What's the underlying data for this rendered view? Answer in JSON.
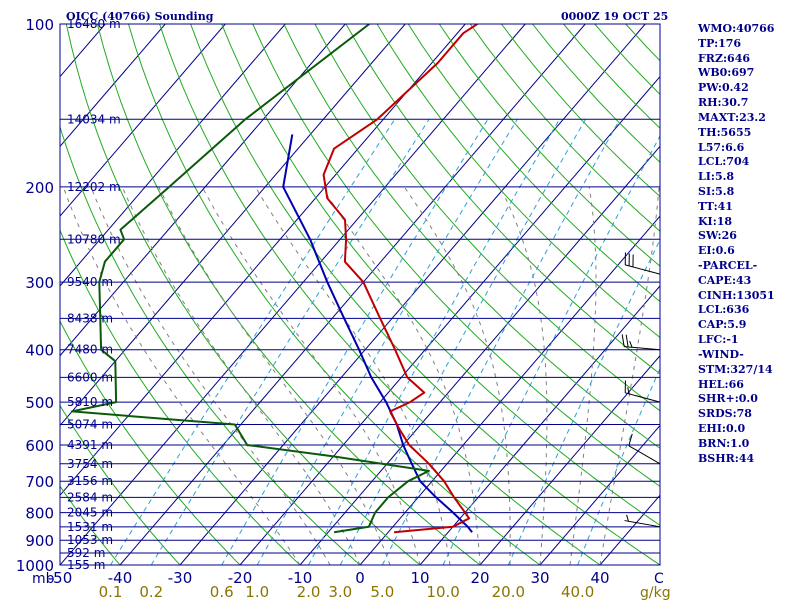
{
  "header": {
    "station": "OICC (40766) Sounding",
    "time": "0000Z 19 OCT 25"
  },
  "indices": [
    "WMO:40766",
    "TP:176",
    "FRZ:646",
    "WB0:697",
    "PW:0.42",
    "RH:30.7",
    "MAXT:23.2",
    "TH:5655",
    "L57:6.6",
    "LCL:704",
    "LI:5.8",
    "SI:5.8",
    "TT:41",
    "KI:18",
    "SW:26",
    "EI:0.6",
    "-PARCEL-",
    "CAPE:43",
    "CINH:13051",
    "LCL:636",
    "CAP:5.9",
    "LFC:-1",
    "-WIND-",
    "STM:327/14",
    "HEL:66",
    "SHR+:0.0",
    "SRDS:78",
    "EHI:0.0",
    "BRN:1.0",
    "BSHR:44"
  ],
  "colors": {
    "background": "#ffffff",
    "border": "#00008b",
    "isobar": "#00008b",
    "isotherm": "#00008b",
    "dry_adiabat": "#22aa22",
    "moist_adiabat": "#808080",
    "mixing_ratio": "#2aa0d8",
    "temperature": "#c00000",
    "dewpoint": "#0a5a0a",
    "parcel": "#0000b0",
    "wind_barb": "#000000",
    "text": "#00008b",
    "mixing_label": "#8b7500"
  },
  "chart_data": {
    "type": "skew-t",
    "x_unit": "C",
    "y_unit": "mb",
    "temp_axis_at_1000mb": [
      -50,
      50
    ],
    "pressure_range_mb": [
      1000,
      100
    ],
    "y_scale": "log",
    "pressure_ticks": [
      100,
      200,
      300,
      400,
      500,
      600,
      700,
      800,
      900,
      1000
    ],
    "pressure_tick_labels": [
      "100",
      "200",
      "300",
      "400",
      "500",
      "600",
      "700",
      "800",
      "900",
      "1000"
    ],
    "temperature_ticks": [
      -50,
      -40,
      -30,
      -20,
      -10,
      0,
      10,
      20,
      30,
      40
    ],
    "temperature_tick_labels": [
      "-50",
      "-40",
      "-30",
      "-20",
      "-10",
      "0",
      "10",
      "20",
      "30",
      "40"
    ],
    "x_axis_unit_label": "C",
    "y_axis_unit_label": "mb",
    "mixing_ratio_values": [
      0.1,
      0.2,
      0.6,
      1.0,
      2.0,
      3.0,
      5.0,
      10.0,
      20.0,
      40.0
    ],
    "mixing_ratio_labels": [
      "0.1",
      "0.2",
      "0.6",
      "1.0",
      "2.0",
      "3.0",
      "5.0",
      "10.0",
      "20.0",
      "40.0"
    ],
    "mixing_ratio_unit": "g/kg",
    "height_levels": [
      {
        "p": 100,
        "label": "16480 m"
      },
      {
        "p": 150,
        "label": "14034 m"
      },
      {
        "p": 200,
        "label": "12202 m"
      },
      {
        "p": 250,
        "label": "10780 m"
      },
      {
        "p": 300,
        "label": "9540 m"
      },
      {
        "p": 350,
        "label": "8438 m"
      },
      {
        "p": 400,
        "label": "7480 m"
      },
      {
        "p": 450,
        "label": "6600 m"
      },
      {
        "p": 500,
        "label": "5810 m"
      },
      {
        "p": 550,
        "label": "5074 m"
      },
      {
        "p": 600,
        "label": "4391 m"
      },
      {
        "p": 650,
        "label": "3754 m"
      },
      {
        "p": 700,
        "label": "3156 m"
      },
      {
        "p": 750,
        "label": "2584 m"
      },
      {
        "p": 800,
        "label": "2045 m"
      },
      {
        "p": 850,
        "label": "1531 m"
      },
      {
        "p": 900,
        "label": "1053 m"
      },
      {
        "p": 950,
        "label": "592 m"
      },
      {
        "p": 1000,
        "label": "155 m"
      }
    ],
    "temperature_profile": [
      {
        "p": 100,
        "t": -58
      },
      {
        "p": 104,
        "t": -59
      },
      {
        "p": 118,
        "t": -59
      },
      {
        "p": 150,
        "t": -61
      },
      {
        "p": 170,
        "t": -64
      },
      {
        "p": 190,
        "t": -62
      },
      {
        "p": 210,
        "t": -58
      },
      {
        "p": 230,
        "t": -52
      },
      {
        "p": 250,
        "t": -49
      },
      {
        "p": 275,
        "t": -46
      },
      {
        "p": 300,
        "t": -40
      },
      {
        "p": 350,
        "t": -32
      },
      {
        "p": 400,
        "t": -25
      },
      {
        "p": 450,
        "t": -19
      },
      {
        "p": 480,
        "t": -14
      },
      {
        "p": 500,
        "t": -15
      },
      {
        "p": 520,
        "t": -17
      },
      {
        "p": 560,
        "t": -13
      },
      {
        "p": 600,
        "t": -9
      },
      {
        "p": 650,
        "t": -3
      },
      {
        "p": 700,
        "t": 2
      },
      {
        "p": 750,
        "t": 6
      },
      {
        "p": 800,
        "t": 10
      },
      {
        "p": 820,
        "t": 11.5
      },
      {
        "p": 850,
        "t": 10
      },
      {
        "p": 870,
        "t": 1
      }
    ],
    "dewpoint_profile": [
      {
        "p": 100,
        "t": -76
      },
      {
        "p": 150,
        "t": -83
      },
      {
        "p": 200,
        "t": -86
      },
      {
        "p": 240,
        "t": -88
      },
      {
        "p": 250,
        "t": -86
      },
      {
        "p": 275,
        "t": -86
      },
      {
        "p": 300,
        "t": -84
      },
      {
        "p": 400,
        "t": -74
      },
      {
        "p": 420,
        "t": -70
      },
      {
        "p": 500,
        "t": -64
      },
      {
        "p": 520,
        "t": -70
      },
      {
        "p": 550,
        "t": -41
      },
      {
        "p": 600,
        "t": -36
      },
      {
        "p": 630,
        "t": -20
      },
      {
        "p": 670,
        "t": -2
      },
      {
        "p": 700,
        "t": -4
      },
      {
        "p": 750,
        "t": -5
      },
      {
        "p": 800,
        "t": -5
      },
      {
        "p": 850,
        "t": -4
      },
      {
        "p": 870,
        "t": -9
      }
    ],
    "parcel_profile": [
      {
        "p": 160,
        "t": -73
      },
      {
        "p": 200,
        "t": -67
      },
      {
        "p": 250,
        "t": -55
      },
      {
        "p": 300,
        "t": -46
      },
      {
        "p": 350,
        "t": -38
      },
      {
        "p": 400,
        "t": -31
      },
      {
        "p": 450,
        "t": -25
      },
      {
        "p": 500,
        "t": -19
      },
      {
        "p": 550,
        "t": -14
      },
      {
        "p": 600,
        "t": -10
      },
      {
        "p": 636,
        "t": -7
      },
      {
        "p": 700,
        "t": -2
      },
      {
        "p": 750,
        "t": 3
      },
      {
        "p": 800,
        "t": 8
      },
      {
        "p": 850,
        "t": 12.5
      },
      {
        "p": 870,
        "t": 14
      }
    ],
    "wind_barbs_kt": [
      {
        "p": 290,
        "dir": 285,
        "spd": 30
      },
      {
        "p": 400,
        "dir": 275,
        "spd": 25
      },
      {
        "p": 500,
        "dir": 285,
        "spd": 15
      },
      {
        "p": 650,
        "dir": 300,
        "spd": 10
      },
      {
        "p": 850,
        "dir": 280,
        "spd": 5
      }
    ],
    "grid": true
  }
}
